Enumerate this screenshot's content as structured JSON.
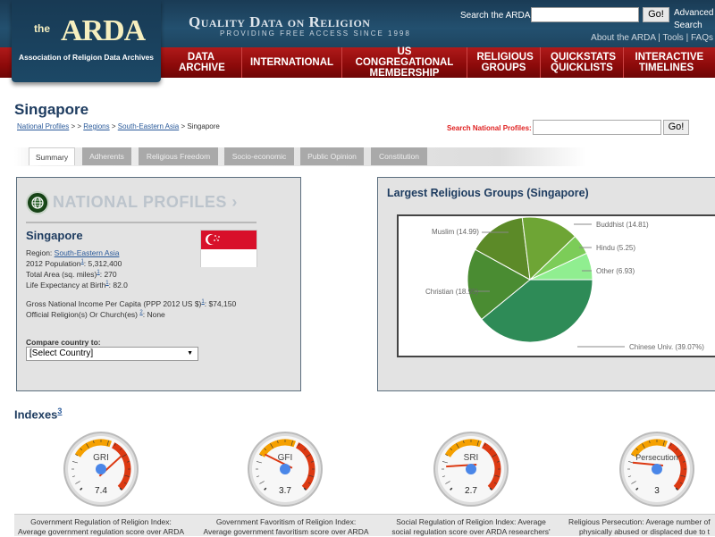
{
  "header": {
    "logo_the": "the",
    "logo_arda": "ARDA",
    "logo_subtitle": "Association of Religion Data Archives",
    "tagline": "Quality Data on Religion",
    "tagline_sub": "PROVIDING FREE ACCESS SINCE 1998",
    "search_label": "Search the ARDA",
    "search_placeholder": "",
    "search_go": "Go!",
    "advanced_search": "Advanced Search",
    "top_links": [
      "About the ARDA",
      "Tools",
      "FAQs"
    ],
    "separator": "|"
  },
  "nav": {
    "items": [
      {
        "label": "DATA ARCHIVE"
      },
      {
        "label": "INTERNATIONAL"
      },
      {
        "label": "US CONGREGATIONAL MEMBERSHIP"
      },
      {
        "label": "RELIGIOUS GROUPS"
      },
      {
        "label": "QUICKSTATS QUICKLISTS"
      },
      {
        "label": "INTERACTIVE TIMELINES"
      }
    ]
  },
  "page": {
    "title": "Singapore",
    "breadcrumb": {
      "national_profiles": "National Profiles",
      "sep1": " > > ",
      "regions": "Regions",
      "sep2": " > ",
      "region": "South-Eastern Asia",
      "sep3": " > ",
      "current": "Singapore"
    },
    "np_search_label": "Search National Profiles:",
    "np_search_placeholder": "",
    "np_search_go": "Go!"
  },
  "tabs": [
    {
      "label": "Summary",
      "active": true
    },
    {
      "label": "Adherents",
      "active": false
    },
    {
      "label": "Religious Freedom",
      "active": false
    },
    {
      "label": "Socio-economic",
      "active": false
    },
    {
      "label": "Public Opinion",
      "active": false
    },
    {
      "label": "Constitution",
      "active": false
    }
  ],
  "profile": {
    "heading": "NATIONAL PROFILES ›",
    "country": "Singapore",
    "region_label": "Region: ",
    "region_value": "South-Eastern Asia",
    "population_label": "2012 Population",
    "population_note": "1",
    "population_value": ": 5,312,400",
    "area_label": "Total Area (sq. miles)",
    "area_note": "1",
    "area_value": ": 270",
    "life_label": "Life Expectancy at Birth",
    "life_note": "1",
    "life_value": ": 82.0",
    "gni_label": "Gross National Income Per Capita (PPP 2012 US $)",
    "gni_note": "1",
    "gni_value": ": $74,150",
    "official_label": "Official Religion(s) Or Church(es) ",
    "official_note": "2",
    "official_value": ": None",
    "compare_label": "Compare country to:",
    "compare_selected": "[Select Country]",
    "flag_colors": {
      "red": "#d8102a",
      "white": "#ffffff"
    }
  },
  "chart_data": {
    "type": "pie",
    "title": "Largest Religious Groups (Singapore)",
    "categories": [
      "Chinese Univ.",
      "Christian",
      "Muslim",
      "Buddhist",
      "Hindu",
      "Other"
    ],
    "values": [
      39.07,
      18.95,
      14.99,
      14.81,
      5.25,
      6.93
    ],
    "labels": [
      "Chinese Univ. (39.07%)",
      "Christian (18.95)",
      "Muslim (14.99)",
      "Buddhist (14.81)",
      "Hindu (5.25)",
      "Other (6.93)"
    ],
    "colors": [
      "#2e8b57",
      "#4a8c32",
      "#5c8a28",
      "#6ea535",
      "#7ccc58",
      "#90ee90"
    ]
  },
  "indexes": {
    "title": "Indexes",
    "note": "3",
    "gauges": [
      {
        "name": "GRI",
        "value": "7.4",
        "num": 7.4,
        "desc1": "Government Regulation of Religion Index:",
        "desc2": "Average government regulation score over ARDA"
      },
      {
        "name": "GFI",
        "value": "3.7",
        "num": 3.7,
        "desc1": "Government Favoritism of Religion Index:",
        "desc2": "Average government favoritism score over ARDA"
      },
      {
        "name": "SRI",
        "value": "2.7",
        "num": 2.7,
        "desc1": "Social Regulation of Religion Index: Average",
        "desc2": "social regulation score over ARDA researchers'"
      },
      {
        "name": "Persecution",
        "value": "3",
        "num": 3,
        "desc1": "Religious Persecution: Average number of",
        "desc2": "physically abused or displaced due to t"
      }
    ],
    "scale_min": "1",
    "scale_max": "10"
  }
}
